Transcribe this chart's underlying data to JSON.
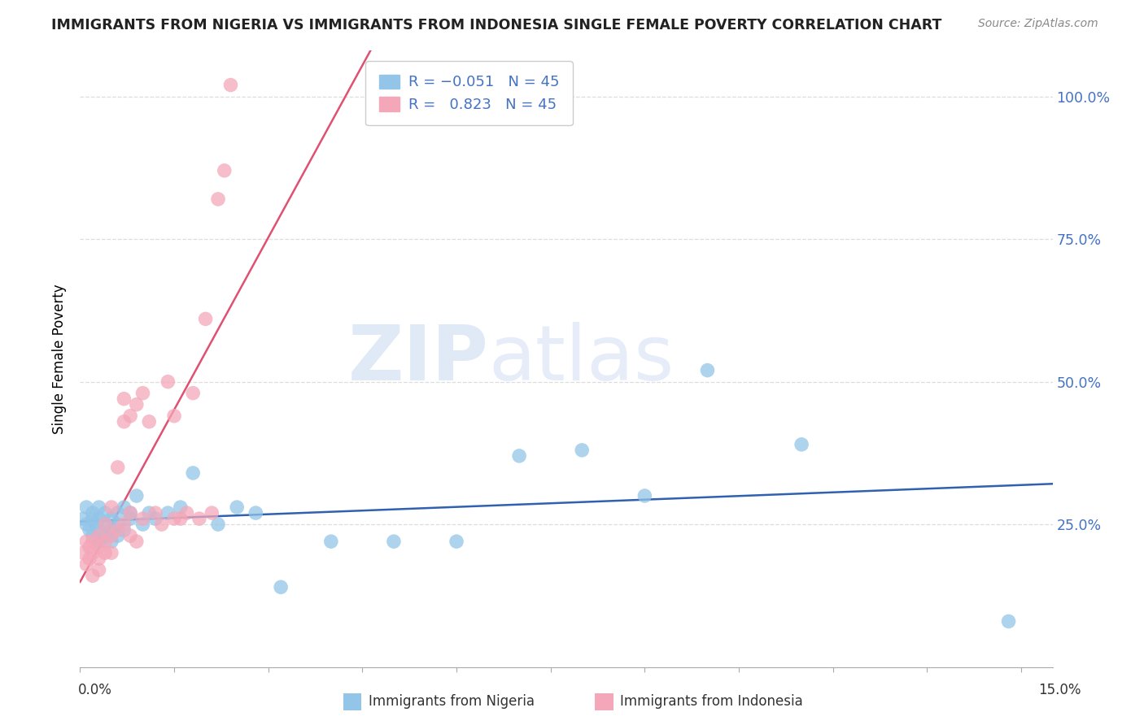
{
  "title": "IMMIGRANTS FROM NIGERIA VS IMMIGRANTS FROM INDONESIA SINGLE FEMALE POVERTY CORRELATION CHART",
  "source": "Source: ZipAtlas.com",
  "ylabel": "Single Female Poverty",
  "ylim": [
    0.0,
    1.08
  ],
  "xlim": [
    0.0,
    0.155
  ],
  "nigeria_color": "#92C5E8",
  "indonesia_color": "#F4A7B9",
  "nigeria_line_color": "#3060B0",
  "indonesia_line_color": "#E05070",
  "watermark_zip": "ZIP",
  "watermark_atlas": "atlas",
  "nigeria_x": [
    0.0005,
    0.001,
    0.001,
    0.0015,
    0.002,
    0.002,
    0.002,
    0.0025,
    0.003,
    0.003,
    0.003,
    0.003,
    0.004,
    0.004,
    0.004,
    0.005,
    0.005,
    0.005,
    0.006,
    0.006,
    0.006,
    0.007,
    0.007,
    0.008,
    0.008,
    0.009,
    0.01,
    0.011,
    0.012,
    0.014,
    0.016,
    0.018,
    0.022,
    0.025,
    0.028,
    0.032,
    0.04,
    0.05,
    0.06,
    0.07,
    0.08,
    0.09,
    0.1,
    0.115,
    0.148
  ],
  "nigeria_y": [
    0.26,
    0.25,
    0.28,
    0.24,
    0.27,
    0.23,
    0.26,
    0.25,
    0.24,
    0.26,
    0.22,
    0.28,
    0.25,
    0.23,
    0.27,
    0.24,
    0.26,
    0.22,
    0.25,
    0.23,
    0.27,
    0.28,
    0.24,
    0.26,
    0.27,
    0.3,
    0.25,
    0.27,
    0.26,
    0.27,
    0.28,
    0.34,
    0.25,
    0.28,
    0.27,
    0.14,
    0.22,
    0.22,
    0.22,
    0.37,
    0.38,
    0.3,
    0.52,
    0.39,
    0.08
  ],
  "indonesia_x": [
    0.0005,
    0.001,
    0.001,
    0.0015,
    0.0015,
    0.002,
    0.002,
    0.002,
    0.003,
    0.003,
    0.003,
    0.003,
    0.004,
    0.004,
    0.004,
    0.005,
    0.005,
    0.005,
    0.006,
    0.006,
    0.007,
    0.007,
    0.007,
    0.008,
    0.008,
    0.008,
    0.009,
    0.009,
    0.01,
    0.01,
    0.011,
    0.012,
    0.013,
    0.014,
    0.015,
    0.015,
    0.016,
    0.017,
    0.018,
    0.019,
    0.02,
    0.021,
    0.022,
    0.023,
    0.024
  ],
  "indonesia_y": [
    0.2,
    0.18,
    0.22,
    0.19,
    0.21,
    0.2,
    0.16,
    0.22,
    0.21,
    0.19,
    0.17,
    0.23,
    0.25,
    0.22,
    0.2,
    0.28,
    0.23,
    0.2,
    0.35,
    0.24,
    0.43,
    0.47,
    0.25,
    0.44,
    0.27,
    0.23,
    0.46,
    0.22,
    0.48,
    0.26,
    0.43,
    0.27,
    0.25,
    0.5,
    0.26,
    0.44,
    0.26,
    0.27,
    0.48,
    0.26,
    0.61,
    0.27,
    0.82,
    0.87,
    1.02
  ]
}
